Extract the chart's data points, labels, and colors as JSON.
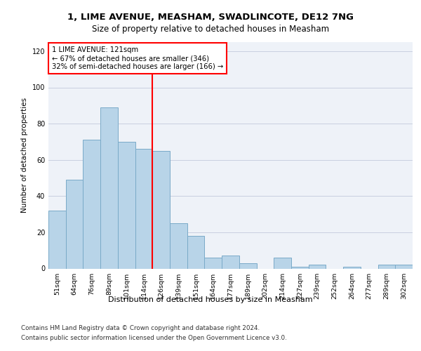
{
  "title_line1": "1, LIME AVENUE, MEASHAM, SWADLINCOTE, DE12 7NG",
  "title_line2": "Size of property relative to detached houses in Measham",
  "xlabel": "Distribution of detached houses by size in Measham",
  "ylabel": "Number of detached properties",
  "bar_color": "#b8d4e8",
  "bar_edge_color": "#7aaac8",
  "background_color": "#eef2f8",
  "categories": [
    "51sqm",
    "64sqm",
    "76sqm",
    "89sqm",
    "101sqm",
    "114sqm",
    "126sqm",
    "139sqm",
    "151sqm",
    "164sqm",
    "177sqm",
    "189sqm",
    "202sqm",
    "214sqm",
    "227sqm",
    "239sqm",
    "252sqm",
    "264sqm",
    "277sqm",
    "289sqm",
    "302sqm"
  ],
  "values": [
    32,
    49,
    71,
    89,
    70,
    66,
    65,
    25,
    18,
    6,
    7,
    3,
    0,
    6,
    1,
    2,
    0,
    1,
    0,
    2,
    2
  ],
  "vline_bin": 5,
  "annotation_text": "1 LIME AVENUE: 121sqm\n← 67% of detached houses are smaller (346)\n32% of semi-detached houses are larger (166) →",
  "ylim": [
    0,
    125
  ],
  "yticks": [
    0,
    20,
    40,
    60,
    80,
    100,
    120
  ],
  "footer_line1": "Contains HM Land Registry data © Crown copyright and database right 2024.",
  "footer_line2": "Contains public sector information licensed under the Open Government Licence v3.0.",
  "grid_color": "#c8cfe0"
}
